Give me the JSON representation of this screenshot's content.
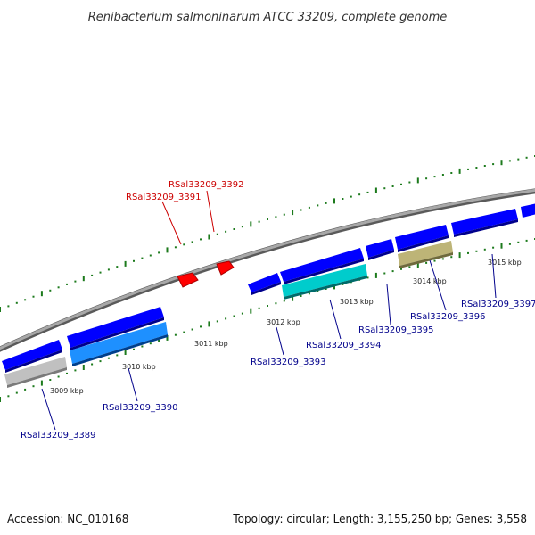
{
  "title": "Renibacterium salmoninarum ATCC 33209, complete genome",
  "footer": {
    "accession": "Accession: NC_010168",
    "summary": "Topology: circular; Length: 3,155,250 bp; Genes: 3,558"
  },
  "colors": {
    "backbone": "#8c8c8c",
    "ticks": "#1c7a1c",
    "label_forward": "#cc0000",
    "label_reverse": "#00008b",
    "gene_red": "#ff0000",
    "gene_blue": "#0000ff",
    "gene_lightblue": "#1e90ff",
    "gene_cyan": "#00cccc",
    "gene_grey": "#b8b8b8",
    "gene_olive": "#b5ad6e"
  },
  "scale_labels": [
    "3009 kbp",
    "3010 kbp",
    "3011 kbp",
    "3012 kbp",
    "3013 kbp",
    "3014 kbp",
    "3015 kbp"
  ],
  "genes": [
    {
      "label": "RSal33209_3389",
      "strand": "reverse",
      "color": "gene_grey"
    },
    {
      "label": "RSal33209_3390",
      "strand": "reverse",
      "color": "gene_lightblue"
    },
    {
      "label": "RSal33209_3391",
      "strand": "forward",
      "color": "gene_red"
    },
    {
      "label": "RSal33209_3392",
      "strand": "forward",
      "color": "gene_red"
    },
    {
      "label": "RSal33209_3393",
      "strand": "reverse",
      "color": "gene_blue"
    },
    {
      "label": "RSal33209_3394",
      "strand": "reverse",
      "color": "gene_cyan"
    },
    {
      "label": "RSal33209_3395",
      "strand": "reverse",
      "color": "gene_blue"
    },
    {
      "label": "RSal33209_3396",
      "strand": "reverse",
      "color": "gene_olive"
    },
    {
      "label": "RSal33209_3397",
      "strand": "reverse",
      "color": "gene_blue"
    }
  ]
}
